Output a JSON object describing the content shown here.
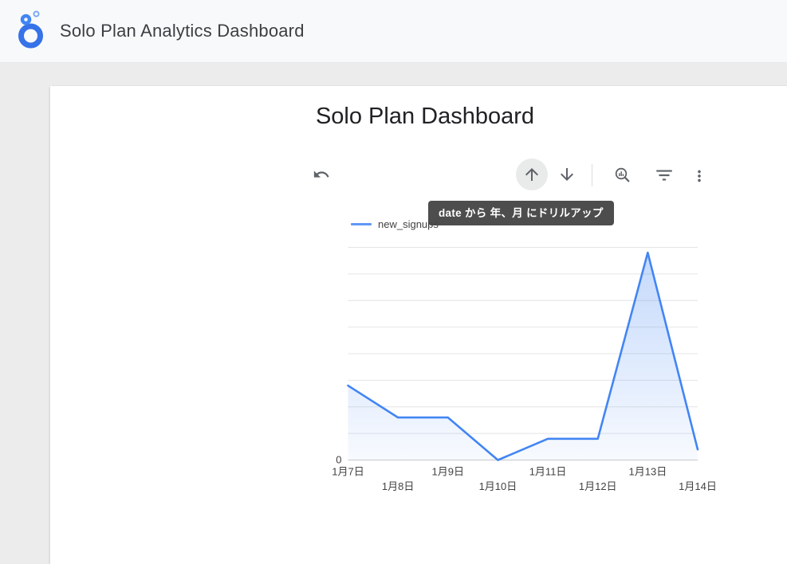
{
  "header": {
    "title": "Solo Plan Analytics Dashboard",
    "logo": "looker-studio-logo",
    "logo_colors": {
      "ring": "#3672e8",
      "mid_circle": "#4285f4",
      "small_circle": "#7baaf7"
    }
  },
  "report": {
    "title": "Solo Plan Dashboard"
  },
  "toolbar": {
    "icons": [
      {
        "name": "undo-icon",
        "action": "undo"
      },
      {
        "name": "drill-up-icon",
        "action": "drill up",
        "state": "hovered"
      },
      {
        "name": "drill-down-icon",
        "action": "drill down"
      },
      {
        "name": "zoom-chart-icon",
        "action": "explore"
      },
      {
        "name": "filter-icon",
        "action": "filter"
      },
      {
        "name": "more-options-icon",
        "action": "more options"
      }
    ],
    "icon_color": "#5f6368"
  },
  "tooltip": {
    "text": "date から 年、月 にドリルアップ",
    "bg_color": "#464646",
    "text_color": "#ffffff"
  },
  "chart_data": {
    "type": "area",
    "title": "",
    "xlabel": "",
    "ylabel": "",
    "categories": [
      "1月7日",
      "1月8日",
      "1月9日",
      "1月10日",
      "1月11日",
      "1月12日",
      "1月13日",
      "1月14日"
    ],
    "series": [
      {
        "name": "new_signups",
        "values": [
          14,
          8,
          8,
          0,
          4,
          4,
          39,
          2
        ]
      }
    ],
    "ylim": [
      0,
      40
    ],
    "grid_step": 5,
    "grid": true,
    "visible_y_ticks": [
      "0"
    ],
    "legend_position": "top-left",
    "line_color": "#4285f4",
    "fill_color": "#4285f4",
    "axis_line_color": "#c8c8c8",
    "grid_line_color": "#e4e4e4"
  }
}
